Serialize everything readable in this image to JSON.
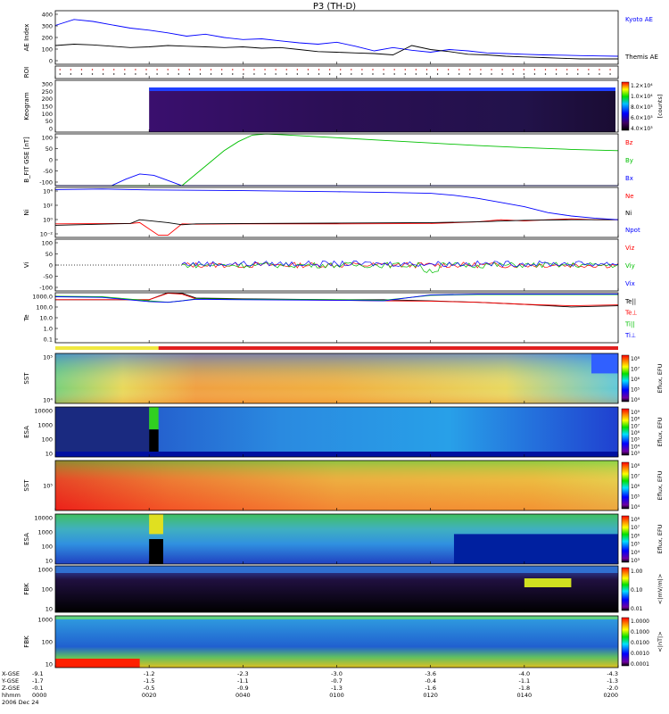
{
  "title": "P3 (TH-D)",
  "colors": {
    "blue": "#0000ff",
    "red": "#ff0000",
    "green": "#00c000",
    "black": "#000000"
  },
  "chart_data": [
    {
      "type": "line",
      "panel": "ae",
      "ylabel": "AE Index",
      "ylim": [
        0,
        400
      ],
      "yticks": [
        "400",
        "300",
        "200",
        "100",
        "0"
      ],
      "series": [
        {
          "name": "Kyoto AE",
          "color": "#0000ff",
          "x": [
            0,
            4,
            8,
            12,
            16,
            20,
            24,
            28,
            32,
            36,
            40,
            44,
            48,
            52,
            56,
            60,
            64,
            68,
            72,
            76,
            80,
            84,
            88,
            92,
            96,
            100,
            104,
            108,
            112,
            116,
            120
          ],
          "values": [
            290,
            335,
            320,
            295,
            270,
            255,
            235,
            210,
            225,
            200,
            185,
            190,
            175,
            160,
            150,
            165,
            135,
            100,
            125,
            105,
            90,
            110,
            100,
            85,
            80,
            75,
            70,
            68,
            65,
            62,
            60
          ]
        },
        {
          "name": "Themis AE",
          "color": "#000000",
          "x": [
            0,
            4,
            8,
            12,
            16,
            20,
            24,
            28,
            32,
            36,
            40,
            44,
            48,
            52,
            56,
            60,
            64,
            68,
            72,
            76,
            80,
            84,
            88,
            92,
            96,
            100,
            104,
            108,
            112,
            116,
            120
          ],
          "values": [
            140,
            150,
            145,
            135,
            125,
            130,
            140,
            135,
            130,
            125,
            130,
            120,
            125,
            110,
            95,
            90,
            85,
            80,
            70,
            140,
            110,
            95,
            75,
            70,
            60,
            55,
            50,
            45,
            40,
            40,
            40
          ]
        }
      ]
    },
    {
      "type": "scatter",
      "panel": "roi",
      "ylabel": "ROI"
    },
    {
      "type": "heatmap",
      "panel": "keogram",
      "ylabel": "Keogram",
      "yticks": [
        "300",
        "250",
        "200",
        "150",
        "100",
        "50",
        "0"
      ],
      "colorbar": {
        "ticks": [
          "1.2×10⁴",
          "1.0×10⁴",
          "8.0×10³",
          "6.0×10³",
          "4.0×10³"
        ],
        "label": "[counts]"
      }
    },
    {
      "type": "line",
      "panel": "bfit",
      "ylabel": "B_FIT GSE [nT]",
      "ylim": [
        -100,
        100
      ],
      "yticks": [
        "100",
        "50",
        "0",
        "-50",
        "-100"
      ],
      "series": [
        {
          "name": "Bz",
          "color": "#ff0000",
          "x": [
            0,
            120
          ],
          "values": [
            -100,
            -100
          ]
        },
        {
          "name": "By",
          "color": "#00c000",
          "x": [
            0,
            27,
            30,
            33,
            36,
            39,
            42,
            45,
            50,
            60,
            70,
            80,
            90,
            100,
            110,
            120
          ],
          "values": [
            -100,
            -100,
            -55,
            -10,
            35,
            70,
            95,
            100,
            95,
            85,
            75,
            65,
            55,
            47,
            40,
            35
          ]
        },
        {
          "name": "Bx",
          "color": "#0000ff",
          "x": [
            0,
            12,
            15,
            18,
            21,
            24,
            27,
            120
          ],
          "values": [
            -100,
            -100,
            -75,
            -55,
            -60,
            -80,
            -100,
            -100
          ]
        }
      ]
    },
    {
      "type": "line",
      "panel": "ni",
      "ylabel": "Ni",
      "yscale": "log",
      "ylim": [
        0.01,
        100000.0
      ],
      "yticks": [
        "10⁴",
        "10²",
        "10⁰",
        "10⁻²"
      ],
      "series": [
        {
          "name": "Ne",
          "color": "#ff0000",
          "x": [
            0,
            16,
            18,
            22,
            24,
            27,
            30,
            40,
            60,
            80,
            90,
            95,
            100,
            105,
            110,
            115,
            120
          ],
          "values": [
            0.8,
            0.9,
            1.2,
            0.02,
            0.02,
            0.8,
            0.7,
            0.8,
            0.8,
            0.9,
            1.5,
            3,
            2,
            3,
            4,
            3,
            3
          ]
        },
        {
          "name": "Ni",
          "color": "#000000",
          "x": [
            0,
            16,
            18,
            24,
            27,
            30,
            40,
            60,
            80,
            90,
            100,
            110,
            120
          ],
          "values": [
            0.5,
            0.9,
            3,
            1.2,
            0.6,
            0.8,
            0.9,
            1,
            1.2,
            1.5,
            2.5,
            3,
            3
          ]
        },
        {
          "name": "Npot",
          "color": "#0000ff",
          "x": [
            0,
            10,
            20,
            30,
            40,
            50,
            60,
            70,
            80,
            85,
            90,
            95,
            100,
            105,
            110,
            115,
            120
          ],
          "values": [
            50000,
            60000,
            45000,
            40000,
            35000,
            30000,
            25000,
            20000,
            15000,
            8000,
            3000,
            800,
            200,
            30,
            10,
            5,
            3
          ]
        }
      ]
    },
    {
      "type": "line",
      "panel": "vi",
      "ylabel": "Vi",
      "ylim": [
        -100,
        100
      ],
      "yticks": [
        "100",
        "50",
        "0",
        "-50",
        "-100"
      ],
      "series": [
        {
          "name": "Viz",
          "color": "#ff0000",
          "x": [
            0,
            120
          ],
          "values": [
            0,
            0
          ]
        },
        {
          "name": "Viy",
          "color": "#00c000",
          "x": [
            0,
            120
          ],
          "values": [
            0,
            0
          ]
        },
        {
          "name": "Vix",
          "color": "#0000ff",
          "x": [
            0,
            120
          ],
          "values": [
            5,
            5
          ]
        }
      ]
    },
    {
      "type": "line",
      "panel": "te",
      "ylabel": "Te",
      "yscale": "log",
      "ylim": [
        0.1,
        2000
      ],
      "yticks": [
        "1000.0",
        "100.0",
        "10.0",
        "1.0",
        "0.1"
      ],
      "series": [
        {
          "name": "Te||",
          "color": "#000000",
          "x": [
            0,
            20,
            24,
            27,
            30,
            40,
            60,
            70,
            80,
            90,
            100,
            110,
            120
          ],
          "values": [
            500,
            500,
            2000,
            1800,
            700,
            600,
            500,
            500,
            400,
            300,
            200,
            120,
            150
          ]
        },
        {
          "name": "Te⊥",
          "color": "#ff0000",
          "x": [
            0,
            20,
            24,
            27,
            30,
            40,
            60,
            70,
            80,
            90,
            100,
            110,
            120
          ],
          "values": [
            500,
            500,
            1800,
            1500,
            600,
            550,
            450,
            400,
            380,
            300,
            200,
            150,
            180
          ]
        },
        {
          "name": "Ti||",
          "color": "#00c000",
          "x": [
            0,
            10,
            20,
            24,
            27,
            30,
            40,
            60,
            70,
            80,
            90,
            100,
            110,
            120
          ],
          "values": [
            1000,
            900,
            400,
            300,
            400,
            600,
            550,
            500,
            450,
            1200,
            1400,
            1400,
            1400,
            1400
          ]
        },
        {
          "name": "Ti⊥",
          "color": "#0000ff",
          "x": [
            0,
            10,
            20,
            24,
            27,
            30,
            40,
            60,
            70,
            80,
            90,
            100,
            110,
            120
          ],
          "values": [
            900,
            800,
            350,
            300,
            400,
            550,
            500,
            450,
            400,
            1300,
            1500,
            1500,
            1500,
            1500
          ]
        }
      ]
    },
    {
      "type": "heatmap",
      "panel": "sst-e",
      "ylabel": "SST",
      "yticks": [
        "10⁵",
        "10⁴"
      ],
      "colorbar": {
        "ticks": [
          "10⁸",
          "10⁷",
          "10⁶",
          "10⁵",
          "10⁴"
        ],
        "label": "Eflux, EFU"
      }
    },
    {
      "type": "heatmap",
      "panel": "esa-e",
      "ylabel": "ESA",
      "yticks": [
        "10000",
        "1000",
        "100",
        "10"
      ],
      "colorbar": {
        "ticks": [
          "10⁹",
          "10⁸",
          "10⁷",
          "10⁶",
          "10⁵",
          "10⁴",
          "10³"
        ],
        "label": "Eflux, EFU"
      }
    },
    {
      "type": "heatmap",
      "panel": "sst-i",
      "ylabel": "SST",
      "yticks": [
        "10⁵"
      ],
      "colorbar": {
        "ticks": [
          "10⁸",
          "10⁷",
          "10⁶",
          "10⁵",
          "10⁴"
        ],
        "label": "Eflux, EFU"
      }
    },
    {
      "type": "heatmap",
      "panel": "esa-i",
      "ylabel": "ESA",
      "yticks": [
        "10000",
        "1000",
        "100",
        "10"
      ],
      "colorbar": {
        "ticks": [
          "10⁸",
          "10⁷",
          "10⁶",
          "10⁵",
          "10⁴",
          "10³"
        ],
        "label": "Eflux, EFU"
      }
    },
    {
      "type": "heatmap",
      "panel": "fbk-e",
      "ylabel": "FBK",
      "yticks": [
        "1000",
        "100",
        "10"
      ],
      "colorbar": {
        "ticks": [
          "1.00",
          "0.10",
          "0.01"
        ],
        "label": "<|mV/m|>"
      }
    },
    {
      "type": "heatmap",
      "panel": "fbk-b",
      "ylabel": "FBK",
      "yticks": [
        "1000",
        "100",
        "10"
      ],
      "colorbar": {
        "ticks": [
          "1.0000",
          "0.1000",
          "0.0100",
          "0.0010",
          "0.0001"
        ],
        "label": "<|nT|>"
      }
    }
  ],
  "xaxis": {
    "row_labels": [
      "X-GSE",
      "Y-GSE",
      "Z-GSE",
      "hhmm",
      "2006 Dec 24"
    ],
    "ticks": [
      {
        "t": 0,
        "x": "-9.1",
        "y": "-1.7",
        "z": "-0.1",
        "hhmm": "0000"
      },
      {
        "t": 20,
        "x": "-1.2",
        "y": "-1.5",
        "z": "-0.5",
        "hhmm": "0020"
      },
      {
        "t": 40,
        "x": "-2.3",
        "y": "-1.1",
        "z": "-0.9",
        "hhmm": "0040"
      },
      {
        "t": 60,
        "x": "-3.0",
        "y": "-0.7",
        "z": "-1.3",
        "hhmm": "0100"
      },
      {
        "t": 80,
        "x": "-3.6",
        "y": "-0.4",
        "z": "-1.6",
        "hhmm": "0120"
      },
      {
        "t": 100,
        "x": "-4.0",
        "y": "-1.1",
        "z": "-1.8",
        "hhmm": "0140"
      },
      {
        "t": 120,
        "x": "-4.3",
        "y": "-1.3",
        "z": "-2.0",
        "hhmm": "0200"
      }
    ]
  }
}
